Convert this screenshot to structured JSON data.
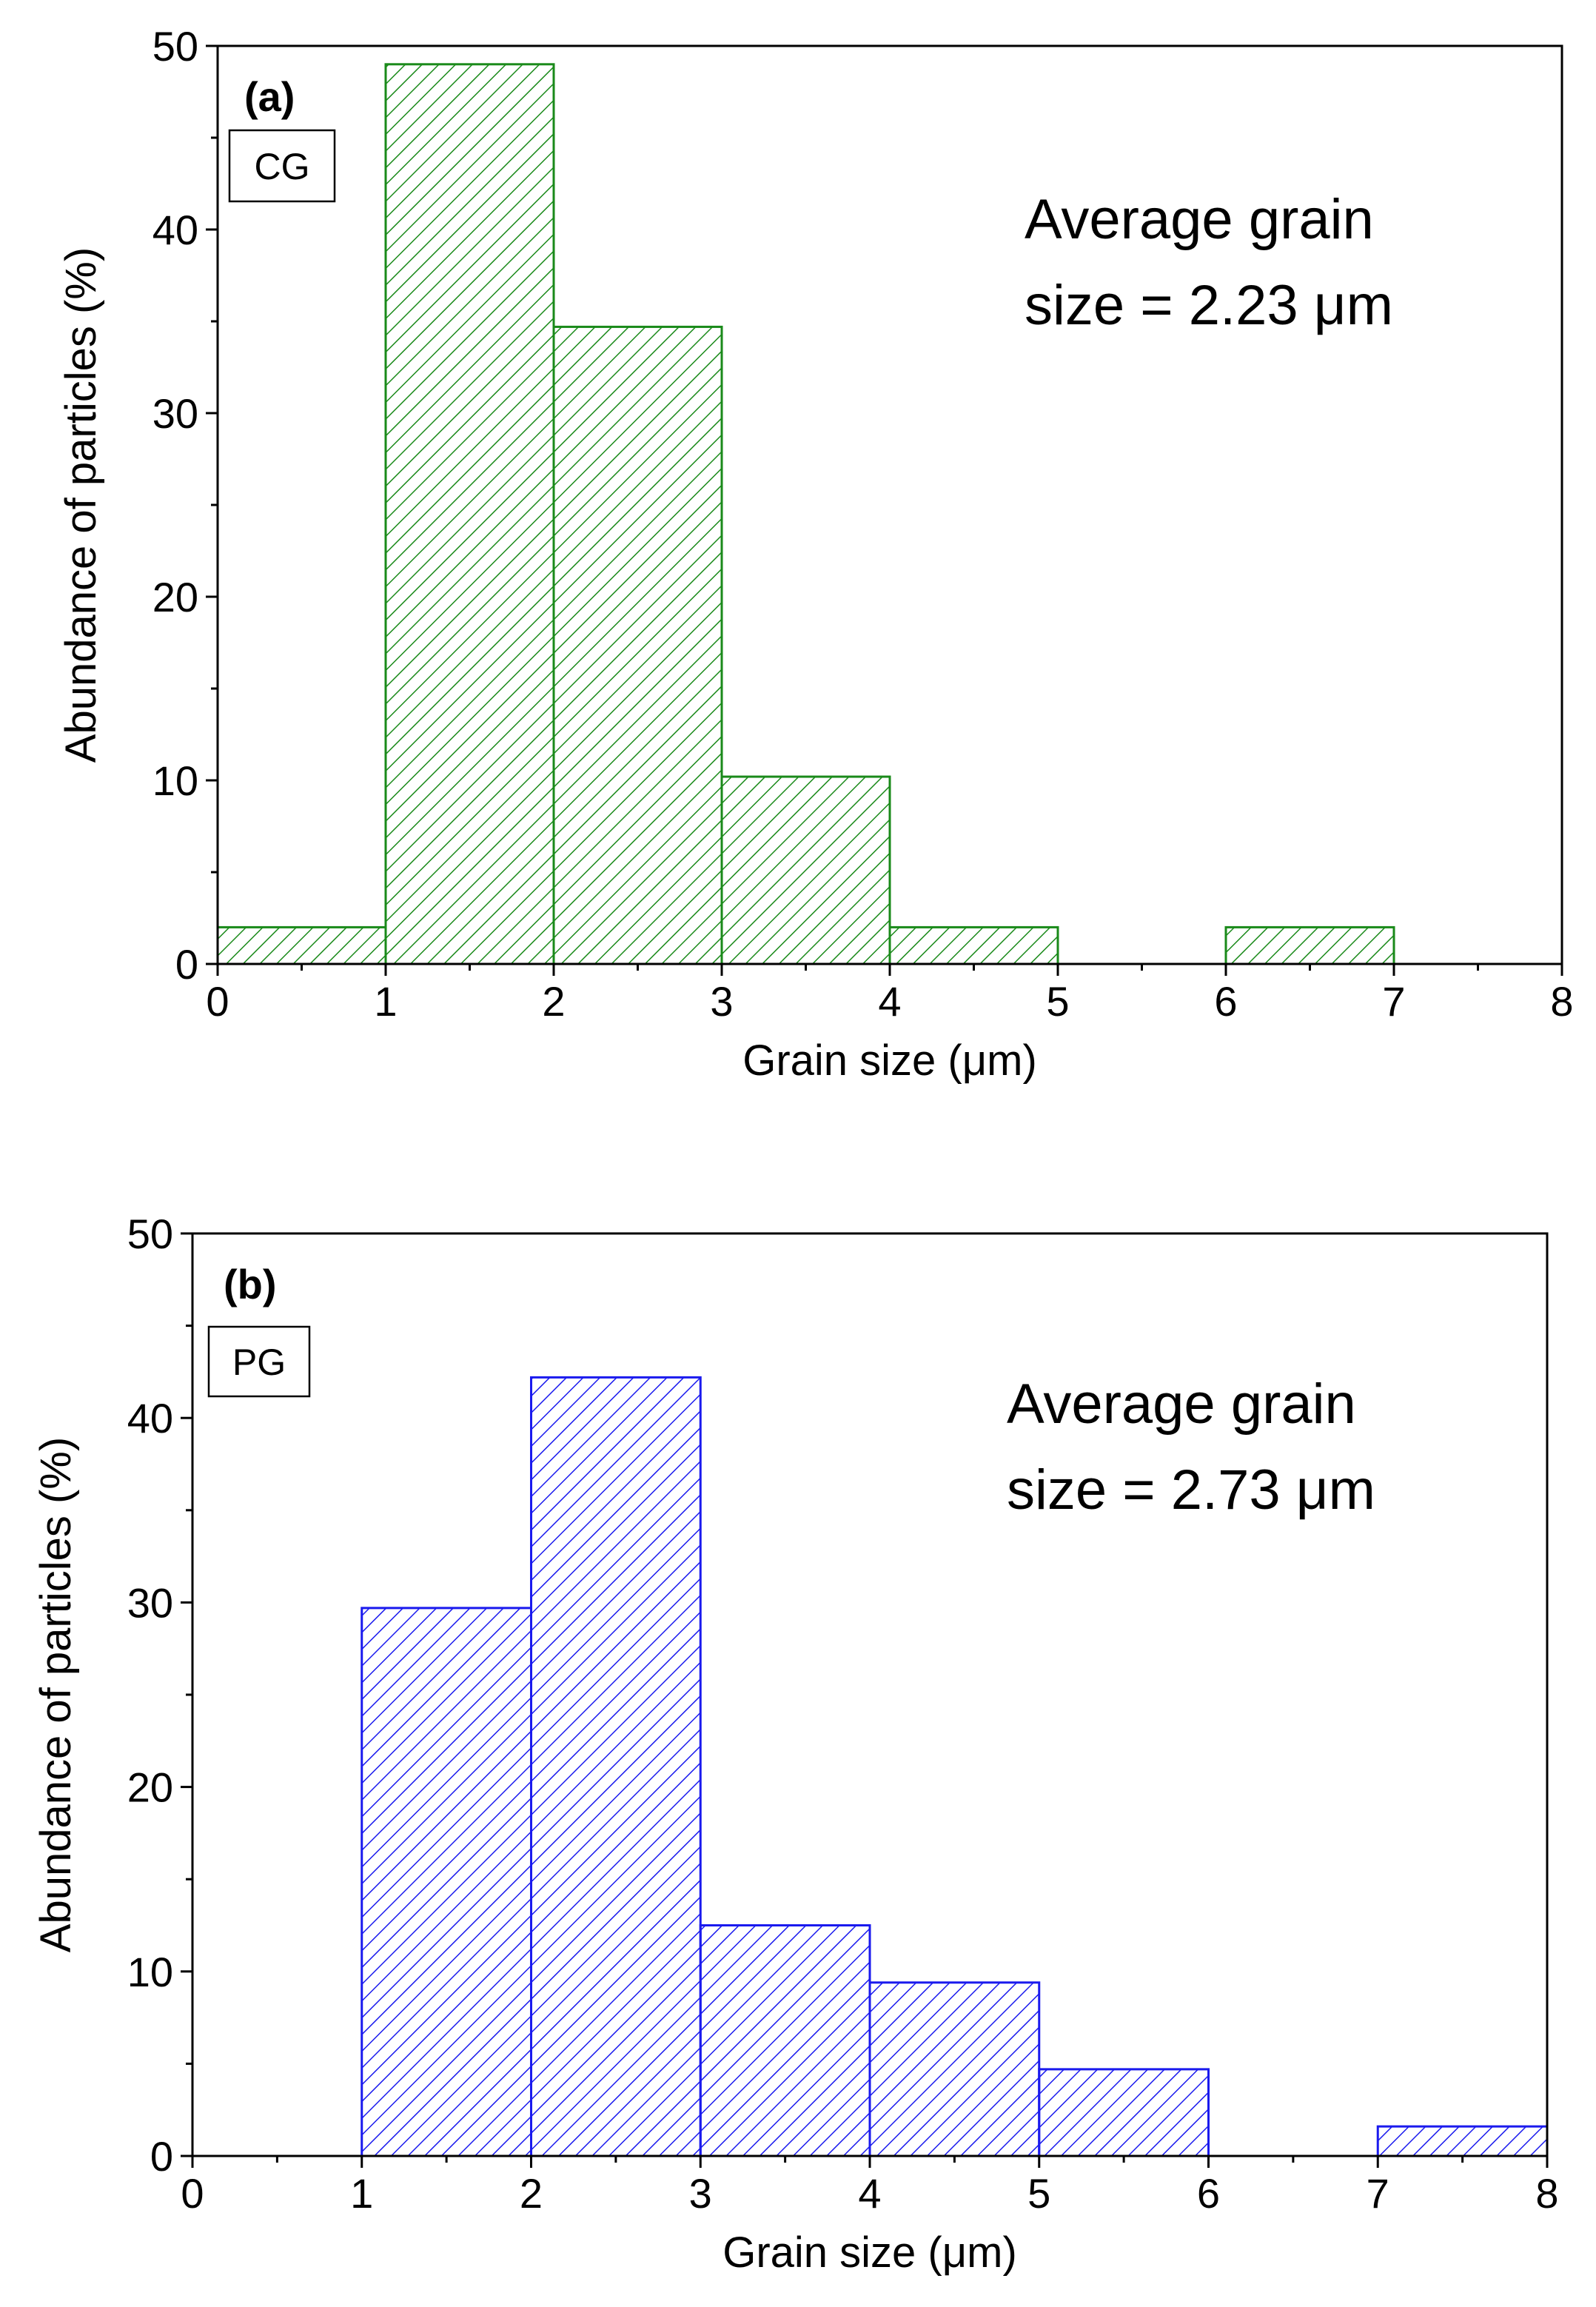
{
  "chart_data": [
    {
      "type": "bar",
      "panel_label": "(a)",
      "sample_tag": "CG",
      "annotation_line1": "Average grain",
      "annotation_line2": "size = 2.23 μm",
      "xlabel": "Grain size (μm)",
      "ylabel": "Abundance of particles (%)",
      "xlim": [
        0,
        8
      ],
      "ylim": [
        0,
        50
      ],
      "xticks": [
        "0",
        "1",
        "2",
        "3",
        "4",
        "5",
        "6",
        "7",
        "8"
      ],
      "yticks": [
        "0",
        "10",
        "20",
        "30",
        "40",
        "50"
      ],
      "color": "#1a8a1a",
      "bins": [
        {
          "x0": 0,
          "x1": 1,
          "value": 2
        },
        {
          "x0": 1,
          "x1": 2,
          "value": 49
        },
        {
          "x0": 2,
          "x1": 3,
          "value": 34.7
        },
        {
          "x0": 3,
          "x1": 4,
          "value": 10.2
        },
        {
          "x0": 4,
          "x1": 5,
          "value": 2
        },
        {
          "x0": 6,
          "x1": 7,
          "value": 2
        }
      ]
    },
    {
      "type": "bar",
      "panel_label": "(b)",
      "sample_tag": "PG",
      "annotation_line1": "Average grain",
      "annotation_line2": "size = 2.73 μm",
      "xlabel": "Grain size (μm)",
      "ylabel": "Abundance of particles (%)",
      "xlim": [
        0,
        8
      ],
      "ylim": [
        0,
        50
      ],
      "xticks": [
        "0",
        "1",
        "2",
        "3",
        "4",
        "5",
        "6",
        "7",
        "8"
      ],
      "yticks": [
        "0",
        "10",
        "20",
        "30",
        "40",
        "50"
      ],
      "color": "#1a1aee",
      "bins": [
        {
          "x0": 1,
          "x1": 2,
          "value": 29.7
        },
        {
          "x0": 2,
          "x1": 3,
          "value": 42.2
        },
        {
          "x0": 3,
          "x1": 4,
          "value": 12.5
        },
        {
          "x0": 4,
          "x1": 5,
          "value": 9.4
        },
        {
          "x0": 5,
          "x1": 6,
          "value": 4.7
        },
        {
          "x0": 7,
          "x1": 8,
          "value": 1.6
        }
      ]
    }
  ]
}
